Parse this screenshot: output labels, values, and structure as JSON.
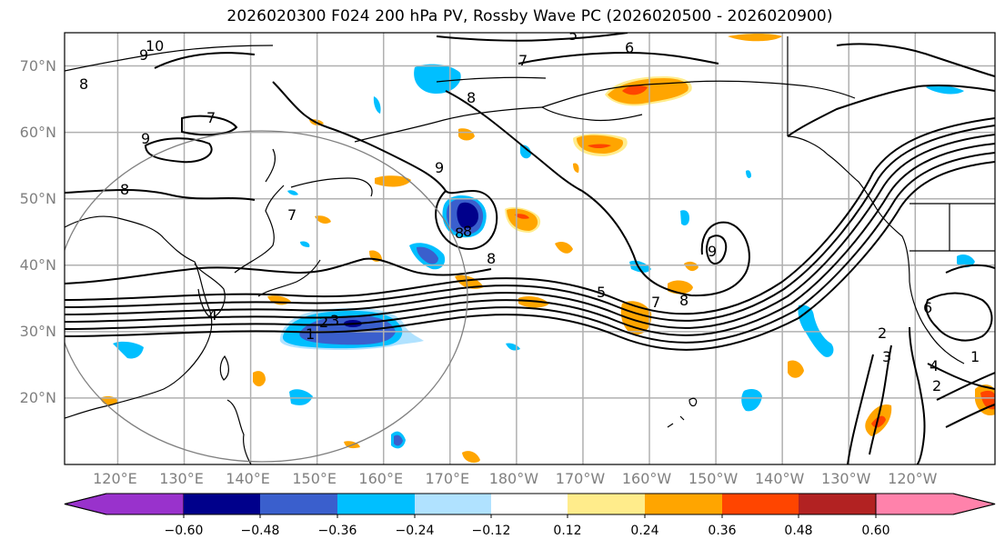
{
  "title": "2026020300 F024 200 hPa PV, Rossby Wave PC (2026020500 - 2026020900)",
  "map": {
    "projection": "PlateCarree",
    "region": "North Pacific",
    "lon_range": [
      112,
      252
    ],
    "lat_range": [
      10,
      75
    ],
    "lat_labels": [
      "70°N",
      "60°N",
      "50°N",
      "40°N",
      "30°N",
      "20°N"
    ],
    "lat_values": [
      70,
      60,
      50,
      40,
      30,
      20
    ],
    "lon_labels": [
      "120°E",
      "130°E",
      "140°E",
      "150°E",
      "160°E",
      "170°E",
      "180°W",
      "170°W",
      "160°W",
      "150°W",
      "140°W",
      "130°W",
      "120°W"
    ],
    "lon_values": [
      120,
      130,
      140,
      150,
      160,
      170,
      180,
      190,
      200,
      210,
      220,
      230,
      240
    ],
    "gridline_color": "#b0b0b0",
    "contour_field": "200 hPa PV (PVU)",
    "contour_labels": [
      "10",
      "9",
      "8",
      "7",
      "9",
      "8",
      "7",
      "8",
      "5",
      "6",
      "7",
      "8",
      "9",
      "8",
      "1",
      "2",
      "3",
      "4",
      "5",
      "7",
      "8",
      "9",
      "2",
      "3",
      "4",
      "2",
      "1",
      "6",
      "8"
    ],
    "shaded_field": "Rossby Wave PC"
  },
  "colorbar": {
    "ticks": [
      "−0.60",
      "−0.48",
      "−0.36",
      "−0.24",
      "−0.12",
      "0.12",
      "0.24",
      "0.36",
      "0.48",
      "0.60"
    ],
    "tick_values": [
      -0.6,
      -0.48,
      -0.36,
      -0.24,
      -0.12,
      0.12,
      0.24,
      0.36,
      0.48,
      0.6
    ],
    "colors": [
      "#9932cc",
      "#00008b",
      "#3a5fcd",
      "#00bfff",
      "#b0e2ff",
      "#ffffff",
      "#ffec8b",
      "#ffa500",
      "#ff4500",
      "#b22222",
      "#ff82ab"
    ],
    "extend": "both"
  }
}
